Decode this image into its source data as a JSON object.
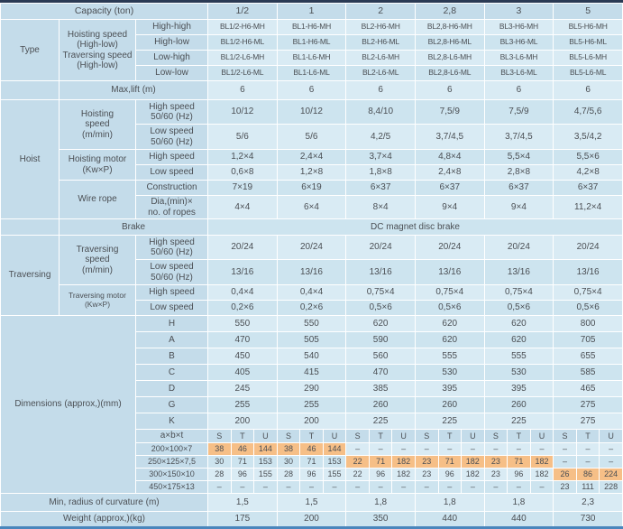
{
  "colors": {
    "top": "#2a3a54",
    "bottom": "#4a86bc",
    "lab": "#c4dcea",
    "light": "#d9ebf4",
    "dark": "#cde4ef",
    "hl": "#f6bf87",
    "text": "#4b4f54",
    "grid": "#ffffff"
  },
  "capacity": {
    "label": "Capacity (ton)",
    "values": [
      "1/2",
      "1",
      "2",
      "2,8",
      "3",
      "5"
    ]
  },
  "type": {
    "label": "Type",
    "speed_label_lines": [
      "Hoisting speed",
      "(High-low)",
      "Traversing speed",
      "(High-low)"
    ],
    "rows": [
      {
        "label": "High-high",
        "values": [
          "BL1/2-H6-MH",
          "BL1-H6-MH",
          "BL2-H6-MH",
          "BL2,8-H6-MH",
          "BL3-H6-MH",
          "BL5-H6-MH"
        ]
      },
      {
        "label": "High-low",
        "values": [
          "BL1/2-H6-ML",
          "BL1-H6-ML",
          "BL2-H6-ML",
          "BL2,8-H6-ML",
          "BL3-H6-ML",
          "BL5-H6-ML"
        ]
      },
      {
        "label": "Low-high",
        "values": [
          "BL1/2-L6-MH",
          "BL1-L6-MH",
          "BL2-L6-MH",
          "BL2,8-L6-MH",
          "BL3-L6-MH",
          "BL5-L6-MH"
        ]
      },
      {
        "label": "Low-low",
        "values": [
          "BL1/2-L6-ML",
          "BL1-L6-ML",
          "BL2-L6-ML",
          "BL2,8-L6-ML",
          "BL3-L6-ML",
          "BL5-L6-ML"
        ]
      }
    ]
  },
  "max_lift": {
    "label": "Max,lift (m)",
    "values": [
      "6",
      "6",
      "6",
      "6",
      "6",
      "6"
    ]
  },
  "hoist": {
    "label": "Hoist",
    "hoisting_speed": {
      "label_lines": [
        "Hoisting",
        "speed",
        "(m/min)"
      ],
      "high": {
        "label_lines": [
          "High speed",
          "50/60 (Hz)"
        ],
        "values": [
          "10/12",
          "10/12",
          "8,4/10",
          "7,5/9",
          "7,5/9",
          "4,7/5,6"
        ]
      },
      "low": {
        "label_lines": [
          "Low speed",
          "50/60 (Hz)"
        ],
        "values": [
          "5/6",
          "5/6",
          "4,2/5",
          "3,7/4,5",
          "3,7/4,5",
          "3,5/4,2"
        ]
      }
    },
    "hoisting_motor": {
      "label_lines": [
        "Hoisting motor",
        "(Kw×P)"
      ],
      "high": {
        "label": "High speed",
        "values": [
          "1,2×4",
          "2,4×4",
          "3,7×4",
          "4,8×4",
          "5,5×4",
          "5,5×6"
        ]
      },
      "low": {
        "label": "Low speed",
        "values": [
          "0,6×8",
          "1,2×8",
          "1,8×8",
          "2,4×8",
          "2,8×8",
          "4,2×8"
        ]
      }
    },
    "wire_rope": {
      "label": "Wire rope",
      "construction": {
        "label": "Construction",
        "values": [
          "7×19",
          "6×19",
          "6×37",
          "6×37",
          "6×37",
          "6×37"
        ]
      },
      "dia": {
        "label_lines": [
          "Dia,(min)×",
          "no. of ropes"
        ],
        "values": [
          "4×4",
          "6×4",
          "8×4",
          "9×4",
          "9×4",
          "11,2×4"
        ]
      }
    }
  },
  "brake": {
    "label": "Brake",
    "value": "DC magnet disc brake"
  },
  "traversing": {
    "label": "Traversing",
    "speed": {
      "label_lines": [
        "Traversing",
        "speed",
        "(m/min)"
      ],
      "high": {
        "label_lines": [
          "High speed",
          "50/60 (Hz)"
        ],
        "values": [
          "20/24",
          "20/24",
          "20/24",
          "20/24",
          "20/24",
          "20/24"
        ]
      },
      "low": {
        "label_lines": [
          "Low speed",
          "50/60 (Hz)"
        ],
        "values": [
          "13/16",
          "13/16",
          "13/16",
          "13/16",
          "13/16",
          "13/16"
        ]
      }
    },
    "motor": {
      "label_lines": [
        "Traversing motor",
        "(Kw×P)"
      ],
      "high": {
        "label": "High speed",
        "values": [
          "0,4×4",
          "0,4×4",
          "0,75×4",
          "0,75×4",
          "0,75×4",
          "0,75×4"
        ]
      },
      "low": {
        "label": "Low speed",
        "values": [
          "0,2×6",
          "0,2×6",
          "0,5×6",
          "0,5×6",
          "0,5×6",
          "0,5×6"
        ]
      }
    }
  },
  "dimensions": {
    "label": "Dimensions (approx,)(mm)",
    "rows": [
      {
        "label": "H",
        "values": [
          "550",
          "550",
          "620",
          "620",
          "620",
          "800"
        ]
      },
      {
        "label": "A",
        "values": [
          "470",
          "505",
          "590",
          "620",
          "620",
          "705"
        ]
      },
      {
        "label": "B",
        "values": [
          "450",
          "540",
          "560",
          "555",
          "555",
          "655"
        ]
      },
      {
        "label": "C",
        "values": [
          "405",
          "415",
          "470",
          "530",
          "530",
          "585"
        ]
      },
      {
        "label": "D",
        "values": [
          "245",
          "290",
          "385",
          "395",
          "395",
          "465"
        ]
      },
      {
        "label": "G",
        "values": [
          "255",
          "255",
          "260",
          "260",
          "260",
          "275"
        ]
      },
      {
        "label": "K",
        "values": [
          "200",
          "200",
          "225",
          "225",
          "225",
          "275"
        ]
      }
    ],
    "axbxt": {
      "label": "a×b×t",
      "sub_headers": [
        "S",
        "T",
        "U"
      ]
    },
    "stu_rows": [
      {
        "label": "200×100×7",
        "groups": [
          {
            "vals": [
              "38",
              "46",
              "144"
            ],
            "hl": true
          },
          {
            "vals": [
              "38",
              "46",
              "144"
            ],
            "hl": true
          },
          {
            "vals": [
              "–",
              "–",
              "–"
            ]
          },
          {
            "vals": [
              "–",
              "–",
              "–"
            ]
          },
          {
            "vals": [
              "–",
              "–",
              "–"
            ]
          },
          {
            "vals": [
              "–",
              "–",
              "–"
            ]
          }
        ]
      },
      {
        "label": "250×125×7,5",
        "groups": [
          {
            "vals": [
              "30",
              "71",
              "153"
            ]
          },
          {
            "vals": [
              "30",
              "71",
              "153"
            ]
          },
          {
            "vals": [
              "22",
              "71",
              "182"
            ],
            "hl": true
          },
          {
            "vals": [
              "23",
              "71",
              "182"
            ],
            "hl": true
          },
          {
            "vals": [
              "23",
              "71",
              "182"
            ],
            "hl": true
          },
          {
            "vals": [
              "–",
              "–",
              "–"
            ]
          }
        ]
      },
      {
        "label": "300×150×10",
        "groups": [
          {
            "vals": [
              "28",
              "96",
              "155"
            ]
          },
          {
            "vals": [
              "28",
              "96",
              "155"
            ]
          },
          {
            "vals": [
              "22",
              "96",
              "182"
            ]
          },
          {
            "vals": [
              "23",
              "96",
              "182"
            ]
          },
          {
            "vals": [
              "23",
              "96",
              "182"
            ]
          },
          {
            "vals": [
              "26",
              "86",
              "224"
            ],
            "hl": true
          }
        ]
      },
      {
        "label": "450×175×13",
        "groups": [
          {
            "vals": [
              "–",
              "–",
              "–"
            ]
          },
          {
            "vals": [
              "–",
              "–",
              "–"
            ]
          },
          {
            "vals": [
              "–",
              "–",
              "–"
            ]
          },
          {
            "vals": [
              "–",
              "–",
              "–"
            ]
          },
          {
            "vals": [
              "–",
              "–",
              "–"
            ]
          },
          {
            "vals": [
              "23",
              "111",
              "228"
            ]
          }
        ]
      }
    ]
  },
  "min_radius": {
    "label": "Min, radius of curvature (m)",
    "values": [
      "1,5",
      "1,5",
      "1,8",
      "1,8",
      "1,8",
      "2,3"
    ]
  },
  "weight": {
    "label": "Weight (approx,)(kg)",
    "values": [
      "175",
      "200",
      "350",
      "440",
      "440",
      "730"
    ]
  }
}
